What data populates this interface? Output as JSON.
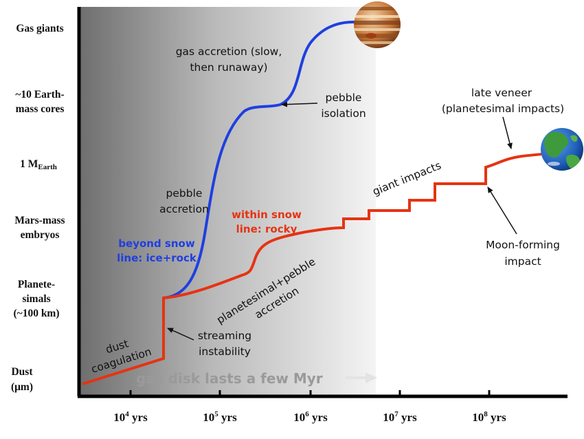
{
  "y_levels": {
    "gas_giants": "Gas giants",
    "cores_1": "~10 Earth-",
    "cores_2": "mass cores",
    "earth_main": "1 M",
    "earth_sub": "Earth",
    "embryos_1": "Mars-mass",
    "embryos_2": "embryos",
    "planetesimals_1": "Planete-",
    "planetesimals_2": "simals",
    "planetesimals_3": "(~100 km)",
    "dust_1": "Dust",
    "dust_2": "(μm)"
  },
  "x_ticks": [
    {
      "base": "10",
      "exp": "4",
      "unit": " yrs"
    },
    {
      "base": "10",
      "exp": "5",
      "unit": " yrs"
    },
    {
      "base": "10",
      "exp": "6",
      "unit": " yrs"
    },
    {
      "base": "10",
      "exp": "7",
      "unit": " yrs"
    },
    {
      "base": "10",
      "exp": "8",
      "unit": " yrs"
    }
  ],
  "annotations": {
    "gas_accretion_1": "gas accretion (slow,",
    "gas_accretion_2": "then runaway)",
    "pebble_isolation_1": "pebble",
    "pebble_isolation_2": "isolation",
    "late_veneer_1": "late veneer",
    "late_veneer_2": "(planetesimal impacts)",
    "giant_impacts": "giant impacts",
    "pebble_accretion_1": "pebble",
    "pebble_accretion_2": "accretion",
    "within_snow_1": "within snow",
    "within_snow_2": "line: rocky",
    "beyond_snow_1": "beyond snow",
    "beyond_snow_2": "line: ice+rock",
    "moon_forming_1": "Moon-forming",
    "moon_forming_2": "impact",
    "pp_accretion_1": "planetesimal+pebble",
    "pp_accretion_2": "accretion",
    "dust_coag_1": "dust",
    "dust_coag_2": "coagulation",
    "streaming_1": "streaming",
    "streaming_2": "instability",
    "gas_disk": "gas disk lasts a few Myr"
  },
  "colors": {
    "blue_track": "#1f3fe0",
    "red_track": "#e63312",
    "gas_text": "#9a9a9a"
  },
  "icons": {
    "gas_giant": "jupiter-icon",
    "earth": "earth-icon"
  }
}
